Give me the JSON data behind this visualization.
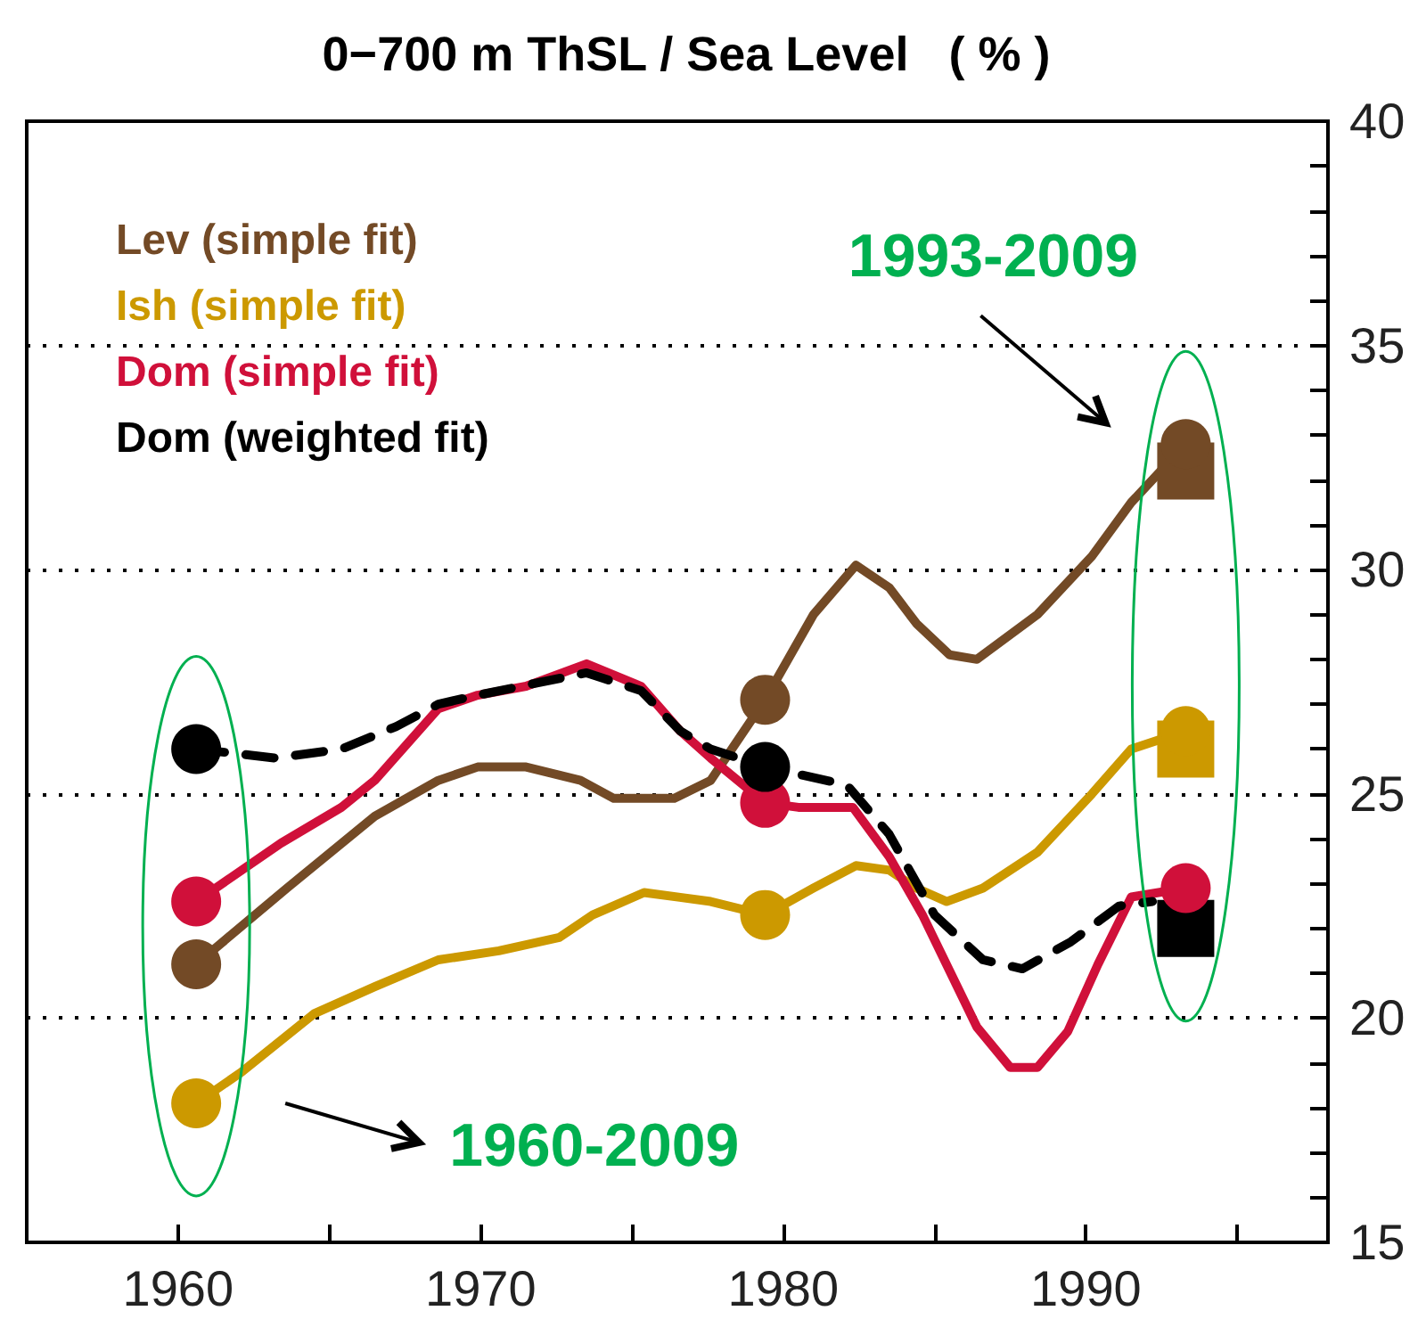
{
  "chart_data": {
    "type": "line",
    "title": "0−700 m ThSL / Sea Level   ( % )",
    "xlim": [
      1955,
      1998
    ],
    "xticks": [
      1960,
      {
        "value": 1965,
        "label": null
      },
      1970,
      {
        "value": 1975,
        "label": null
      },
      1980,
      {
        "value": 1985,
        "label": null
      },
      1990,
      {
        "value": 1995,
        "label": null
      }
    ],
    "ylim": [
      15,
      40
    ],
    "yticks": [
      15,
      {
        "value": 16,
        "label": null
      },
      {
        "value": 17,
        "label": null
      },
      {
        "value": 18,
        "label": null
      },
      {
        "value": 19,
        "label": null
      },
      20,
      {
        "value": 21,
        "label": null
      },
      {
        "value": 22,
        "label": null
      },
      {
        "value": 23,
        "label": null
      },
      {
        "value": 24,
        "label": null
      },
      25,
      {
        "value": 26,
        "label": null
      },
      {
        "value": 27,
        "label": null
      },
      {
        "value": 28,
        "label": null
      },
      {
        "value": 29,
        "label": null
      },
      30,
      {
        "value": 31,
        "label": null
      },
      {
        "value": 32,
        "label": null
      },
      {
        "value": 33,
        "label": null
      },
      {
        "value": 34,
        "label": null
      },
      35,
      {
        "value": 36,
        "label": null
      },
      {
        "value": 37,
        "label": null
      },
      {
        "value": 38,
        "label": null
      },
      {
        "value": 39,
        "label": null
      },
      40
    ],
    "grid": "y",
    "legend": "top left",
    "marker": "none",
    "series": [
      {
        "name": "Lev (simple fit)",
        "color": "#734a26",
        "x": [
          1960.6,
          1963.6,
          1966.5,
          1968.6,
          1969.9,
          1971.5,
          1973.3,
          1974.4,
          1976.4,
          1977.6,
          1979.4,
          1981.0,
          1982.4,
          1983.5,
          1984.4,
          1985.5,
          1986.4,
          1988.4,
          1990.2,
          1991.5,
          1993.3
        ],
        "values": [
          21.2,
          22.9,
          24.5,
          25.3,
          25.6,
          25.6,
          25.3,
          24.9,
          24.9,
          25.3,
          27.1,
          29.0,
          30.1,
          29.6,
          28.8,
          28.1,
          28.0,
          29.0,
          30.3,
          31.5,
          32.8
        ]
      },
      {
        "name": "Ish (simple fit)",
        "color": "#cc9900",
        "x": [
          1960.6,
          1962.1,
          1964.5,
          1966.5,
          1968.6,
          1970.6,
          1972.6,
          1973.7,
          1975.4,
          1977.6,
          1979.4,
          1981.0,
          1982.4,
          1983.5,
          1984.4,
          1985.4,
          1986.6,
          1988.4,
          1990.2,
          1991.5,
          1993.3
        ],
        "values": [
          18.1,
          18.8,
          20.1,
          20.7,
          21.3,
          21.5,
          21.8,
          22.3,
          22.8,
          22.6,
          22.3,
          22.9,
          23.4,
          23.3,
          22.9,
          22.6,
          22.9,
          23.7,
          25.0,
          26.0,
          26.4
        ]
      },
      {
        "name": "Dom (simple fit)",
        "color": "#d0103a",
        "x": [
          1960.6,
          1963.4,
          1965.4,
          1966.5,
          1968.6,
          1969.9,
          1971.5,
          1973.5,
          1975.3,
          1976.6,
          1977.6,
          1979.4,
          1980.5,
          1982.3,
          1983.5,
          1984.6,
          1986.4,
          1987.5,
          1988.4,
          1989.4,
          1990.4,
          1991.5,
          1993.3
        ],
        "values": [
          22.6,
          23.9,
          24.7,
          25.3,
          26.9,
          27.2,
          27.4,
          27.9,
          27.4,
          26.4,
          25.8,
          24.8,
          24.7,
          24.7,
          23.6,
          22.3,
          19.8,
          18.9,
          18.9,
          19.7,
          21.2,
          22.7,
          22.9
        ]
      },
      {
        "name": "Dom (weighted fit)",
        "color": "#000000",
        "line_style": "dashed",
        "x": [
          1960.6,
          1963.2,
          1965.4,
          1967.2,
          1968.6,
          1969.9,
          1973.5,
          1975.3,
          1976.6,
          1977.6,
          1979.4,
          1982.1,
          1983.5,
          1985.0,
          1986.6,
          1987.9,
          1989.5,
          1991.1,
          1992.2
        ],
        "values": [
          26.0,
          25.8,
          26.0,
          26.5,
          27.0,
          27.2,
          27.7,
          27.3,
          26.4,
          26.0,
          25.6,
          25.2,
          24.1,
          22.3,
          21.3,
          21.1,
          21.7,
          22.5,
          22.6
        ]
      },
      {
        "type": "scatter",
        "marker": "square",
        "color": "#734a26",
        "x": [
          1993.3
        ],
        "values": [
          32.2
        ]
      },
      {
        "type": "scatter",
        "marker": "square",
        "color": "#cc9900",
        "x": [
          1993.3
        ],
        "values": [
          26.0
        ]
      },
      {
        "type": "scatter",
        "marker": "square",
        "color": "#000000",
        "x": [
          1993.3
        ],
        "values": [
          22.0
        ]
      },
      {
        "type": "scatter",
        "marker": "circle",
        "color": "#734a26",
        "x": [
          1960.6,
          1979.4,
          1993.3
        ],
        "values": [
          21.2,
          27.1,
          32.8
        ]
      },
      {
        "type": "scatter",
        "marker": "circle",
        "color": "#cc9900",
        "x": [
          1960.6,
          1979.4,
          1993.3
        ],
        "values": [
          18.1,
          22.3,
          26.4
        ]
      },
      {
        "type": "scatter",
        "marker": "circle",
        "color": "#d0103a",
        "x": [
          1960.6,
          1979.4,
          1993.3
        ],
        "values": [
          22.6,
          24.8,
          22.9
        ]
      },
      {
        "type": "scatter",
        "marker": "circle",
        "color": "#000000",
        "x": [
          1960.6,
          1979.4
        ],
        "values": [
          26.0,
          25.6
        ]
      }
    ],
    "annotations": [
      "1960-2009",
      "1993-2009"
    ]
  }
}
